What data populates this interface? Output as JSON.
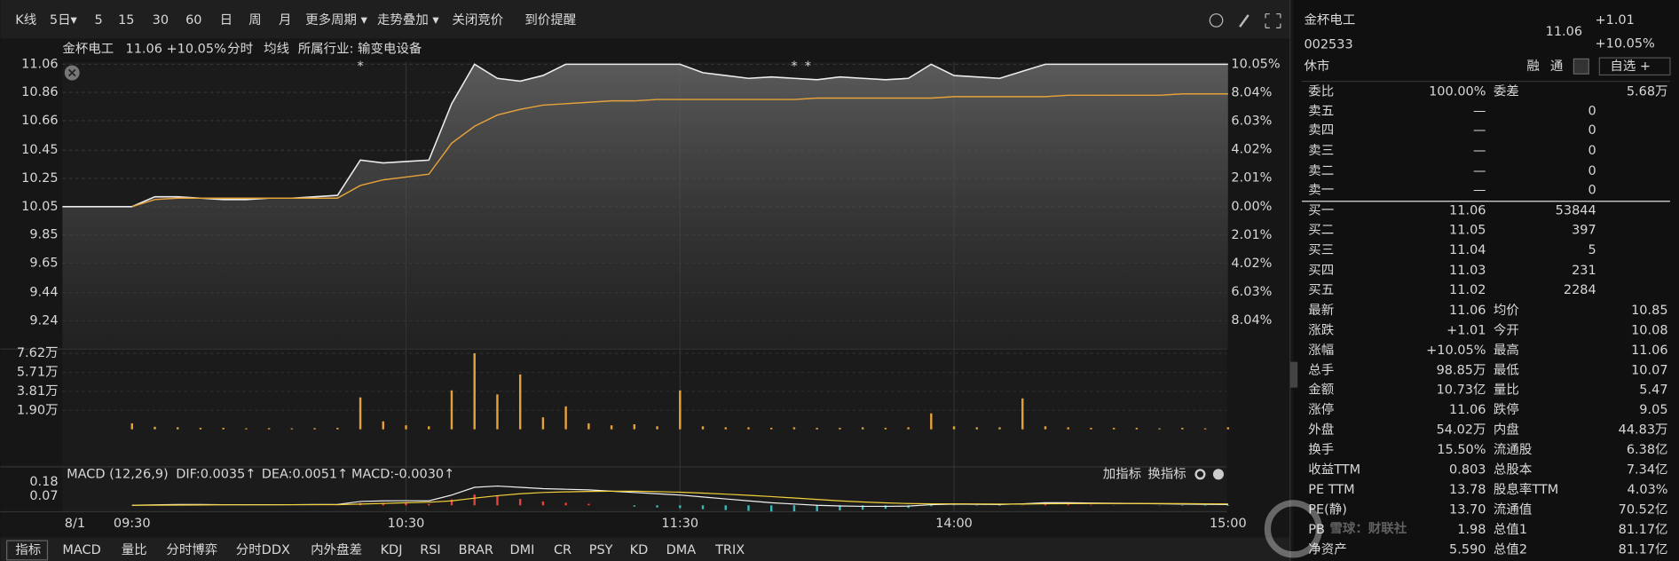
{
  "toolbar": {
    "items": [
      "K线",
      "5日▾",
      "5",
      "15",
      "30",
      "60",
      "日",
      "周",
      "月",
      "更多周期 ▾",
      "走势叠加 ▾",
      "关闭竞价",
      "到价提醒"
    ]
  },
  "quote_line": {
    "name": "金杯电工",
    "price_change": "11.06 +10.05%",
    "mode": "分时",
    "avg_label": "均线",
    "industry": "所属行业: 输变电设备"
  },
  "price_chart": {
    "type": "line",
    "x": [
      0,
      5,
      10,
      15,
      20,
      25,
      30,
      35,
      40,
      45,
      50,
      55,
      60,
      65,
      70,
      75,
      80,
      85,
      90,
      95,
      100,
      105,
      110,
      115,
      120,
      125,
      130,
      135,
      140,
      145,
      150,
      155,
      160,
      165,
      170,
      175,
      180,
      185,
      190,
      195,
      200,
      205,
      210,
      215,
      220,
      225,
      230,
      235,
      240
    ],
    "price_line": {
      "color": "#ececec",
      "values": [
        10.05,
        10.12,
        10.12,
        10.11,
        10.1,
        10.1,
        10.11,
        10.11,
        10.12,
        10.13,
        10.38,
        10.36,
        10.37,
        10.38,
        10.78,
        11.06,
        10.96,
        10.94,
        10.98,
        11.06,
        11.06,
        11.06,
        11.06,
        11.06,
        11.06,
        11.0,
        10.98,
        10.96,
        10.97,
        10.96,
        10.95,
        10.97,
        10.96,
        10.95,
        10.96,
        11.06,
        10.98,
        10.97,
        10.96,
        11.01,
        11.06,
        11.06,
        11.06,
        11.06,
        11.06,
        11.06,
        11.06,
        11.06,
        11.06
      ]
    },
    "avg_line": {
      "color": "#e5a23a",
      "values": [
        10.05,
        10.1,
        10.11,
        10.11,
        10.11,
        10.11,
        10.11,
        10.11,
        10.11,
        10.11,
        10.2,
        10.24,
        10.26,
        10.28,
        10.5,
        10.62,
        10.7,
        10.74,
        10.77,
        10.78,
        10.79,
        10.8,
        10.8,
        10.81,
        10.81,
        10.81,
        10.81,
        10.81,
        10.81,
        10.81,
        10.82,
        10.82,
        10.82,
        10.82,
        10.82,
        10.82,
        10.83,
        10.83,
        10.83,
        10.83,
        10.83,
        10.84,
        10.84,
        10.84,
        10.84,
        10.84,
        10.85,
        10.85,
        10.85
      ]
    },
    "ylim": [
      9.04,
      11.06
    ],
    "yticks": [
      11.06,
      10.86,
      10.66,
      10.45,
      10.25,
      10.05,
      9.85,
      9.65,
      9.44,
      9.24
    ],
    "ytick_colors": [
      "#f23030",
      "#f23030",
      "#f23030",
      "#f23030",
      "#f23030",
      "#e8e8e8",
      "#2fbf4f",
      "#2fbf4f",
      "#2fbf4f",
      "#2fbf4f"
    ],
    "y2lim": [
      -10.05,
      10.05
    ],
    "y2ticks": [
      {
        "value": 10.05,
        "label": "10.05%"
      },
      {
        "value": 8.04,
        "label": "8.04%"
      },
      {
        "value": 6.03,
        "label": "6.03%"
      },
      {
        "value": 4.02,
        "label": "4.02%"
      },
      {
        "value": 2.01,
        "label": "2.01%"
      },
      {
        "value": 0,
        "label": "0.00%"
      },
      {
        "value": -2.01,
        "label": "2.01%"
      },
      {
        "value": -4.02,
        "label": "4.02%"
      },
      {
        "value": -6.03,
        "label": "6.03%"
      },
      {
        "value": -8.04,
        "label": "8.04%"
      }
    ],
    "event_markers": [
      {
        "x": 50,
        "label": "*"
      },
      {
        "x": 145,
        "label": "*"
      },
      {
        "x": 148,
        "label": "*"
      }
    ],
    "xlim": [
      0,
      240
    ],
    "xticks": [
      {
        "value": 0,
        "label": "09:30"
      },
      {
        "value": 60,
        "label": "10:30"
      },
      {
        "value": 120,
        "label": "11:30"
      },
      {
        "value": 180,
        "label": "14:00"
      },
      {
        "value": 240,
        "label": "15:00"
      }
    ],
    "date": "8/1"
  },
  "volume_chart": {
    "type": "bar",
    "color": "#e5a23a",
    "values": [
      0.6,
      0.25,
      0.2,
      0.15,
      0.15,
      0.1,
      0.12,
      0.1,
      0.12,
      0.15,
      3.2,
      0.8,
      0.4,
      0.3,
      3.9,
      7.62,
      3.5,
      5.5,
      1.2,
      2.3,
      0.6,
      0.4,
      0.5,
      0.3,
      3.9,
      0.3,
      0.2,
      0.2,
      0.15,
      0.2,
      0.15,
      0.15,
      0.2,
      0.15,
      0.2,
      1.6,
      0.3,
      0.2,
      0.2,
      3.1,
      0.3,
      0.2,
      0.15,
      0.15,
      0.15,
      0.1,
      0.15,
      0.1,
      0.2
    ],
    "ylim": [
      0,
      7.62
    ],
    "yticks": [
      {
        "value": 7.62,
        "label": "7.62万"
      },
      {
        "value": 5.71,
        "label": "5.71万"
      },
      {
        "value": 3.81,
        "label": "3.81万"
      },
      {
        "value": 1.9,
        "label": "1.90万"
      }
    ]
  },
  "macd_panel": {
    "title": "MACD (12,26,9)",
    "dif_label": "DIF:0.0035↑",
    "dea_label": "DEA:0.0051↑",
    "macd_label": "MACD:-0.0030↑",
    "add": "加指标",
    "switch": "换指标",
    "dif": {
      "color": "#f0f0f0",
      "values": [
        0,
        0.004,
        0.006,
        0.006,
        0.005,
        0.005,
        0.005,
        0.005,
        0.006,
        0.007,
        0.03,
        0.035,
        0.036,
        0.035,
        0.08,
        0.14,
        0.15,
        0.14,
        0.13,
        0.125,
        0.12,
        0.11,
        0.1,
        0.09,
        0.08,
        0.065,
        0.05,
        0.035,
        0.02,
        0.01,
        0.0,
        -0.005,
        -0.008,
        -0.008,
        -0.006,
        0.005,
        0.01,
        0.008,
        0.006,
        0.012,
        0.02,
        0.02,
        0.018,
        0.016,
        0.014,
        0.012,
        0.01,
        0.008,
        0.006
      ]
    },
    "dea": {
      "color": "#f2d13a",
      "values": [
        0,
        0.001,
        0.002,
        0.003,
        0.004,
        0.004,
        0.004,
        0.005,
        0.005,
        0.005,
        0.01,
        0.015,
        0.02,
        0.024,
        0.035,
        0.056,
        0.075,
        0.09,
        0.1,
        0.105,
        0.108,
        0.11,
        0.11,
        0.107,
        0.102,
        0.095,
        0.087,
        0.078,
        0.068,
        0.057,
        0.046,
        0.035,
        0.026,
        0.019,
        0.014,
        0.012,
        0.012,
        0.011,
        0.01,
        0.01,
        0.012,
        0.013,
        0.014,
        0.014,
        0.014,
        0.014,
        0.013,
        0.012,
        0.011
      ]
    },
    "macd": {
      "up_color": "#e8403a",
      "down_color": "#37b7b7",
      "values": [
        0,
        0.003,
        0.004,
        0.003,
        0.001,
        0.001,
        0.001,
        0,
        0.001,
        0.002,
        0.02,
        0.02,
        0.016,
        0.011,
        0.045,
        0.084,
        0.075,
        0.05,
        0.03,
        0.02,
        0.012,
        0,
        -0.01,
        -0.017,
        -0.022,
        -0.03,
        -0.037,
        -0.043,
        -0.048,
        -0.047,
        -0.046,
        -0.04,
        -0.034,
        -0.027,
        -0.02,
        -0.007,
        -0.002,
        -0.003,
        -0.004,
        0.002,
        0.008,
        0.007,
        0.004,
        0.002,
        0,
        -0.002,
        -0.003,
        -0.004,
        -0.005
      ]
    },
    "ylim": [
      -0.05,
      0.2
    ],
    "yticks": [
      0.18,
      0.07
    ]
  },
  "indicator_tabs": {
    "label": "指标",
    "items": [
      "MACD",
      "量比",
      "分时博弈",
      "分时DDX",
      "内外盘差",
      "KDJ",
      "RSI",
      "BRAR",
      "DMI",
      "CR",
      "PSY",
      "KD",
      "DMA",
      "TRIX"
    ],
    "active_color": "#f08a24"
  },
  "quote_panel": {
    "name": "金杯电工",
    "code": "002533",
    "status": "休市",
    "price": "11.06",
    "change": "+1.01",
    "change_pct": "+10.05%",
    "buttons": [
      "融",
      "通",
      "自选 +"
    ]
  },
  "order_book": {
    "ratio": {
      "label": "委比",
      "value": "100.00%",
      "diff_label": "委差",
      "diff": "5.68万"
    },
    "asks": [
      {
        "label": "卖五",
        "price": "—",
        "volume": "0"
      },
      {
        "label": "卖四",
        "price": "—",
        "volume": "0"
      },
      {
        "label": "卖三",
        "price": "—",
        "volume": "0"
      },
      {
        "label": "卖二",
        "price": "—",
        "volume": "0"
      },
      {
        "label": "卖一",
        "price": "—",
        "volume": "0"
      }
    ],
    "bids": [
      {
        "label": "买一",
        "price": "11.06",
        "volume": "53844"
      },
      {
        "label": "买二",
        "price": "11.05",
        "volume": "397"
      },
      {
        "label": "买三",
        "price": "11.04",
        "volume": "5"
      },
      {
        "label": "买四",
        "price": "11.03",
        "volume": "231"
      },
      {
        "label": "买五",
        "price": "11.02",
        "volume": "2284"
      }
    ]
  },
  "stats": [
    {
      "left": {
        "label": "最新",
        "value": "11.06",
        "color": "#f23030"
      },
      "right": {
        "label": "均价",
        "value": "10.85",
        "color": "#f23030"
      }
    },
    {
      "left": {
        "label": "涨跌",
        "value": "+1.01",
        "color": "#f23030"
      },
      "right": {
        "label": "今开",
        "value": "10.08",
        "color": "#f23030"
      }
    },
    {
      "left": {
        "label": "涨幅",
        "value": "+10.05%",
        "color": "#f23030"
      },
      "right": {
        "label": "最高",
        "value": "11.06",
        "color": "#f23030"
      }
    },
    {
      "left": {
        "label": "总手",
        "value": "98.85万",
        "color": "#e0e0e0"
      },
      "right": {
        "label": "最低",
        "value": "10.07",
        "color": "#f23030"
      }
    },
    {
      "left": {
        "label": "金额",
        "value": "10.73亿",
        "color": "#3cc8d8"
      },
      "right": {
        "label": "量比",
        "value": "5.47",
        "color": "#e0e0e0"
      }
    },
    {
      "left": {
        "label": "涨停",
        "value": "11.06",
        "color": "#f23030"
      },
      "right": {
        "label": "跌停",
        "value": "9.05",
        "color": "#2fbf4f"
      }
    },
    {
      "left": {
        "label": "外盘",
        "value": "54.02万",
        "color": "#f23030"
      },
      "right": {
        "label": "内盘",
        "value": "44.83万",
        "color": "#2fbf4f"
      }
    },
    {
      "left": {
        "label": "换手",
        "value": "15.50%",
        "color": "#e0e0e0"
      },
      "right": {
        "label": "流通股",
        "value": "6.38亿",
        "color": "#e0e0e0"
      }
    },
    {
      "left": {
        "label": "收益TTM",
        "value": "0.803",
        "color": "#e0e0e0"
      },
      "right": {
        "label": "总股本",
        "value": "7.34亿",
        "color": "#e0e0e0"
      }
    },
    {
      "left": {
        "label": "PE TTM",
        "value": "13.78",
        "color": "#e0e0e0"
      },
      "right": {
        "label": "股息率TTM",
        "value": "4.03%",
        "color": "#e0e0e0"
      }
    },
    {
      "left": {
        "label": "PE(静)",
        "value": "13.70",
        "color": "#e0e0e0"
      },
      "right": {
        "label": "流通值",
        "value": "70.52亿",
        "color": "#e0e0e0"
      }
    },
    {
      "left": {
        "label": "PB",
        "value": "1.98",
        "color": "#e0e0e0"
      },
      "right": {
        "label": "总值1",
        "value": "81.17亿",
        "color": "#e0e0e0"
      }
    },
    {
      "left": {
        "label": "净资产",
        "value": "5.590",
        "color": "#e0e0e0"
      },
      "right": {
        "label": "总值2",
        "value": "81.17亿",
        "color": "#e0e0e0"
      }
    }
  ],
  "watermark": "雪球：财联社"
}
